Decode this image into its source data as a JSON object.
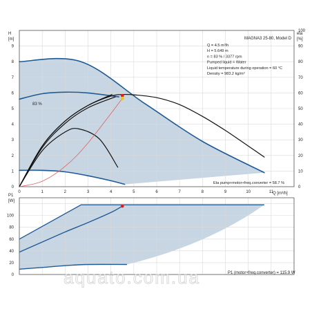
{
  "chart_data": [
    {
      "type": "line",
      "panel": "head",
      "y_axis_label": "H",
      "y_axis_unit": "[m]",
      "y2_axis_label": "eta",
      "y2_axis_unit": "[%]",
      "x_axis_label": "Q [m³/h]",
      "xlim": [
        0,
        12
      ],
      "ylim": [
        0,
        10
      ],
      "y2lim": [
        0,
        100
      ],
      "x_ticks": [
        "0",
        "1",
        "2",
        "3",
        "4",
        "5",
        "6",
        "7",
        "8",
        "9",
        "10",
        "11"
      ],
      "y_ticks": [
        "0",
        "1",
        "2",
        "3",
        "4",
        "5",
        "6",
        "7",
        "8",
        "9"
      ],
      "y2_ticks": [
        "0",
        "10",
        "20",
        "30",
        "40",
        "50",
        "60",
        "70",
        "80",
        "90",
        "100"
      ],
      "grid": true,
      "colors": {
        "area_fill": "#c8d6e3",
        "outline": "#1f5a96",
        "curve": "#111111",
        "system": "#e06060",
        "duty_point_red": "#e02020",
        "duty_point_yellow": "#f0c020"
      },
      "model": "MAGNA3 25-80, Model D",
      "info_lines": [
        "Q = 4.5 m³/h",
        "H = 5.649 m",
        "n = 83 % / 3377 rpm",
        "Pumped liquid = Water",
        "Liquid temperature during operation = 60 °C",
        "Density = 983.2 kg/m³"
      ],
      "efficiency_label": "83 %",
      "eta_note": "Eta pump+motor+freq.converter = 58.7 %",
      "duty_point": {
        "q": 4.5,
        "h": 5.649,
        "eta": 58.7
      },
      "series": [
        {
          "role": "max-curve",
          "x": [
            0,
            2.7,
            5.5,
            8.0,
            10.7
          ],
          "y": [
            8.0,
            8.0,
            5.3,
            2.9,
            0.9
          ]
        },
        {
          "role": "min-curve",
          "x": [
            0,
            1,
            2,
            3,
            4,
            4.6
          ],
          "y": [
            1.05,
            1.05,
            0.95,
            0.7,
            0.38,
            0.15
          ]
        },
        {
          "role": "eff-83-curve",
          "x": [
            0,
            1,
            2,
            3,
            4.35
          ],
          "y": [
            5.6,
            5.95,
            6.05,
            6.0,
            5.75
          ]
        },
        {
          "role": "performance-curve",
          "x": [
            0,
            1,
            2,
            3,
            4,
            4.5,
            5,
            6,
            7,
            8,
            9,
            10,
            10.7
          ],
          "y": [
            0,
            2.6,
            4.2,
            5.2,
            5.8,
            5.9,
            5.88,
            5.7,
            5.25,
            4.5,
            3.6,
            2.6,
            1.9
          ]
        },
        {
          "role": "curve-2",
          "x": [
            0,
            1,
            2,
            3,
            4.05
          ],
          "y": [
            0,
            2.6,
            4.2,
            5.2,
            5.9
          ]
        },
        {
          "role": "curve-3",
          "x": [
            0,
            1,
            2,
            3,
            4.2
          ],
          "y": [
            0,
            2.5,
            4.05,
            5.05,
            5.75
          ]
        },
        {
          "role": "curve-4",
          "x": [
            0,
            1,
            2,
            2.6,
            3.5,
            4.3
          ],
          "y": [
            0,
            2.3,
            3.5,
            3.7,
            3.05,
            1.25
          ]
        },
        {
          "role": "system-curve",
          "x": [
            0,
            1,
            2,
            3,
            4.5
          ],
          "y": [
            0,
            0.35,
            1.3,
            2.8,
            5.649
          ]
        }
      ]
    },
    {
      "type": "line",
      "panel": "power",
      "y_axis_label": "P1",
      "y_axis_unit": "[W]",
      "xlim": [
        0,
        12
      ],
      "ylim": [
        0,
        130
      ],
      "y_ticks": [
        "0",
        "20",
        "40",
        "60",
        "80",
        "100"
      ],
      "grid": true,
      "power_note": "P1 (motor+freq.converter) = 115.9 W",
      "duty_point": {
        "q": 4.5,
        "p1": 115.9
      },
      "series": [
        {
          "role": "max-power",
          "x": [
            0,
            2.7,
            10.7
          ],
          "y": [
            60,
            118,
            118
          ]
        },
        {
          "role": "min-power",
          "x": [
            0,
            1,
            2,
            3,
            4.7
          ],
          "y": [
            9,
            12,
            15,
            17,
            17
          ]
        },
        {
          "role": "duty-power",
          "x": [
            0,
            1,
            2,
            3,
            4,
            4.5
          ],
          "y": [
            38,
            55,
            72,
            88,
            105,
            115.9
          ]
        }
      ]
    }
  ],
  "watermark": "aquato.com.ua"
}
